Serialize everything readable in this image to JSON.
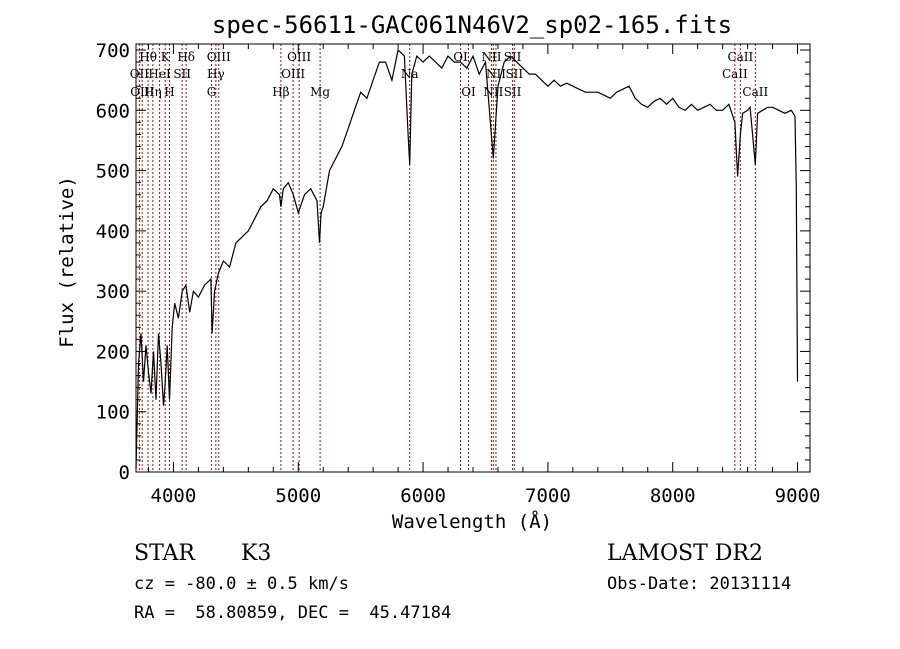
{
  "chart_data": {
    "type": "line",
    "title": "spec-56611-GAC061N46V2_sp02-165.fits",
    "xlabel": "Wavelength (Å)",
    "ylabel": "Flux (relative)",
    "xlim": [
      3700,
      9100
    ],
    "ylim": [
      0,
      710
    ],
    "xticks": [
      "4000",
      "5000",
      "6000",
      "7000",
      "8000",
      "9000"
    ],
    "yticks": [
      "0",
      "100",
      "200",
      "300",
      "400",
      "500",
      "600",
      "700"
    ],
    "series": [
      {
        "name": "flux",
        "x": [
          3700,
          3720,
          3740,
          3760,
          3780,
          3800,
          3820,
          3840,
          3860,
          3880,
          3900,
          3920,
          3933,
          3950,
          3968,
          3990,
          4010,
          4040,
          4070,
          4100,
          4130,
          4160,
          4200,
          4250,
          4300,
          4310,
          4330,
          4360,
          4400,
          4450,
          4500,
          4550,
          4600,
          4650,
          4700,
          4750,
          4800,
          4850,
          4861,
          4880,
          4920,
          4960,
          5000,
          5050,
          5100,
          5150,
          5170,
          5183,
          5200,
          5250,
          5300,
          5350,
          5400,
          5450,
          5500,
          5550,
          5600,
          5650,
          5700,
          5750,
          5800,
          5850,
          5880,
          5893,
          5910,
          5950,
          6000,
          6050,
          6100,
          6150,
          6200,
          6250,
          6300,
          6350,
          6400,
          6450,
          6500,
          6563,
          6600,
          6650,
          6700,
          6750,
          6800,
          6850,
          6900,
          6950,
          7000,
          7050,
          7100,
          7150,
          7200,
          7250,
          7300,
          7350,
          7400,
          7450,
          7500,
          7550,
          7600,
          7650,
          7700,
          7750,
          7800,
          7850,
          7900,
          7950,
          8000,
          8050,
          8100,
          8150,
          8200,
          8250,
          8300,
          8350,
          8400,
          8450,
          8498,
          8520,
          8542,
          8560,
          8600,
          8620,
          8662,
          8680,
          8720,
          8760,
          8800,
          8850,
          8900,
          8950,
          8980,
          8990,
          9000
        ],
        "y": [
          5,
          180,
          230,
          150,
          210,
          165,
          130,
          200,
          120,
          230,
          180,
          110,
          145,
          210,
          120,
          240,
          280,
          255,
          300,
          310,
          265,
          300,
          290,
          310,
          320,
          230,
          300,
          330,
          350,
          340,
          380,
          390,
          400,
          420,
          440,
          450,
          470,
          460,
          440,
          470,
          480,
          460,
          430,
          460,
          470,
          450,
          380,
          430,
          440,
          500,
          520,
          540,
          570,
          600,
          630,
          620,
          650,
          680,
          680,
          650,
          700,
          690,
          560,
          510,
          660,
          690,
          680,
          690,
          680,
          670,
          690,
          680,
          680,
          670,
          690,
          660,
          680,
          520,
          640,
          680,
          690,
          680,
          670,
          660,
          660,
          650,
          640,
          650,
          640,
          645,
          640,
          635,
          630,
          630,
          630,
          625,
          620,
          630,
          635,
          640,
          620,
          610,
          605,
          615,
          620,
          610,
          620,
          605,
          600,
          610,
          600,
          605,
          610,
          600,
          600,
          610,
          580,
          490,
          560,
          595,
          600,
          605,
          510,
          595,
          600,
          605,
          605,
          600,
          595,
          600,
          590,
          470,
          150
        ]
      }
    ],
    "line_labels": [
      {
        "label": "Hθ",
        "wl": 3797,
        "row": 1
      },
      {
        "label": "K",
        "wl": 3934,
        "row": 1
      },
      {
        "label": "Hδ",
        "wl": 4102,
        "row": 1
      },
      {
        "label": "OIII",
        "wl": 4363,
        "row": 1
      },
      {
        "label": "OIII",
        "wl": 5007,
        "row": 1
      },
      {
        "label": "OI",
        "wl": 6300,
        "row": 1
      },
      {
        "label": "NII",
        "wl": 6548,
        "row": 1
      },
      {
        "label": "SII",
        "wl": 6717,
        "row": 1
      },
      {
        "label": "CaII",
        "wl": 8542,
        "row": 1
      },
      {
        "label": "OII",
        "wl": 3727,
        "row": 2
      },
      {
        "label": "HeI",
        "wl": 3889,
        "row": 2
      },
      {
        "label": "SII",
        "wl": 4070,
        "row": 2
      },
      {
        "label": "Hγ",
        "wl": 4340,
        "row": 2
      },
      {
        "label": "OIII",
        "wl": 4959,
        "row": 2
      },
      {
        "label": "NII",
        "wl": 6584,
        "row": 2
      },
      {
        "label": "SII",
        "wl": 6731,
        "row": 2
      },
      {
        "label": "Na",
        "wl": 5893,
        "row": 2
      },
      {
        "label": "CaII",
        "wl": 8498,
        "row": 2
      },
      {
        "label": "OIII",
        "wl": 3750,
        "row": 3
      },
      {
        "label": "Hη",
        "wl": 3835,
        "row": 3
      },
      {
        "label": "H",
        "wl": 3968,
        "row": 3
      },
      {
        "label": "G",
        "wl": 4305,
        "row": 3
      },
      {
        "label": "Hβ",
        "wl": 4861,
        "row": 3
      },
      {
        "label": "Mg",
        "wl": 5175,
        "row": 3
      },
      {
        "label": "OI",
        "wl": 6364,
        "row": 3
      },
      {
        "label": "NII",
        "wl": 6563,
        "row": 3
      },
      {
        "label": "SII",
        "wl": 6717,
        "row": 3
      },
      {
        "label": "CaII",
        "wl": 8662,
        "row": 3
      }
    ]
  },
  "meta": {
    "object_class": "STAR",
    "subclass": "K3",
    "survey": "LAMOST DR2",
    "redshift": "cz = -80.0 ± 0.5 km/s",
    "obs_date": "Obs-Date: 20131114",
    "coords": "RA =  58.80859, DEC =  45.47184"
  }
}
